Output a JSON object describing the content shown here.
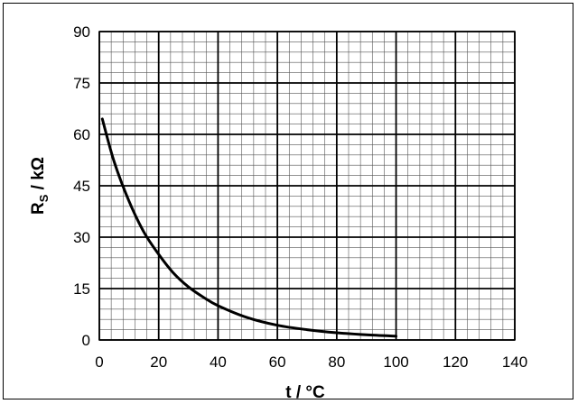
{
  "chart_data": {
    "type": "line",
    "title": "",
    "xlabel": "t / °C",
    "ylabel": {
      "main": "R",
      "sub": "S",
      "rest": " / kΩ"
    },
    "xlim": [
      0,
      140
    ],
    "ylim": [
      0,
      90
    ],
    "x_ticks": [
      0,
      20,
      40,
      60,
      80,
      100,
      120,
      140
    ],
    "y_ticks": [
      0,
      15,
      30,
      45,
      60,
      75,
      90
    ],
    "x_tick_labels": [
      "0",
      "20",
      "40",
      "60",
      "80",
      "100",
      "120",
      "140"
    ],
    "y_tick_labels": [
      "0",
      "15",
      "30",
      "45",
      "60",
      "75",
      "90"
    ],
    "grid": true,
    "series": [
      {
        "x": [
          1,
          5,
          10,
          15,
          20,
          25,
          30,
          35,
          40,
          50,
          60,
          70,
          80,
          90,
          100
        ],
        "y": [
          64.5,
          52,
          40.5,
          31.5,
          25,
          19.5,
          15.5,
          12.5,
          10,
          6.5,
          4.3,
          3.0,
          2.1,
          1.5,
          1.1
        ]
      }
    ]
  }
}
